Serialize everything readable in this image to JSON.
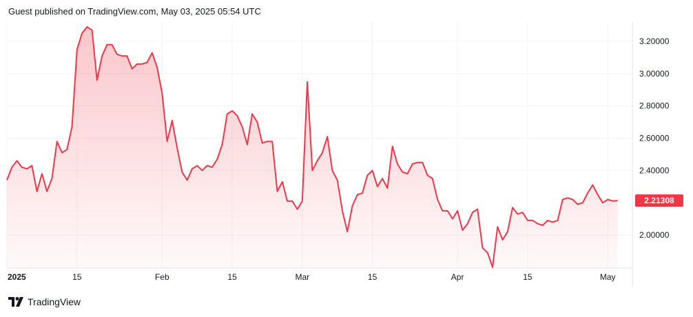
{
  "header": {
    "published_text": "Guest published on TradingView.com, May 03, 2025 05:54 UTC"
  },
  "footer": {
    "brand": "TradingView",
    "logo_icon": "tradingview-logo-icon"
  },
  "colors": {
    "line": "#f23645",
    "fill_top": "#f23645",
    "label_bg": "#f23645",
    "grid": "#f0f3fa",
    "axis_text": "#131722"
  },
  "chart_data": {
    "type": "area",
    "title": "",
    "xlabel": "",
    "ylabel": "",
    "ylim": [
      1.795,
      3.32
    ],
    "xlim": [
      "2025-01-01",
      "2025-05-04"
    ],
    "grid": true,
    "y_ticks": [
      "3.20000",
      "3.00000",
      "2.80000",
      "2.60000",
      "2.40000",
      "2.00000"
    ],
    "x_ticks": [
      {
        "date": "2025-01-01",
        "label": "2025",
        "bold": true
      },
      {
        "date": "2025-01-15",
        "label": "15",
        "bold": false
      },
      {
        "date": "2025-02-01",
        "label": "Feb",
        "bold": false
      },
      {
        "date": "2025-02-15",
        "label": "15",
        "bold": false
      },
      {
        "date": "2025-03-01",
        "label": "Mar",
        "bold": false
      },
      {
        "date": "2025-03-15",
        "label": "15",
        "bold": false
      },
      {
        "date": "2025-04-01",
        "label": "Apr",
        "bold": false
      },
      {
        "date": "2025-04-15",
        "label": "15",
        "bold": false
      },
      {
        "date": "2025-05-01",
        "label": "May",
        "bold": false
      }
    ],
    "last_value_label": "2.21308",
    "series": [
      {
        "x": [
          "2025-01-01",
          "2025-01-02",
          "2025-01-03",
          "2025-01-04",
          "2025-01-05",
          "2025-01-06",
          "2025-01-07",
          "2025-01-08",
          "2025-01-09",
          "2025-01-10",
          "2025-01-11",
          "2025-01-12",
          "2025-01-13",
          "2025-01-14",
          "2025-01-15",
          "2025-01-16",
          "2025-01-17",
          "2025-01-18",
          "2025-01-19",
          "2025-01-20",
          "2025-01-21",
          "2025-01-22",
          "2025-01-23",
          "2025-01-24",
          "2025-01-25",
          "2025-01-26",
          "2025-01-27",
          "2025-01-28",
          "2025-01-29",
          "2025-01-30",
          "2025-01-31",
          "2025-02-01",
          "2025-02-02",
          "2025-02-03",
          "2025-02-04",
          "2025-02-05",
          "2025-02-06",
          "2025-02-07",
          "2025-02-08",
          "2025-02-09",
          "2025-02-10",
          "2025-02-11",
          "2025-02-12",
          "2025-02-13",
          "2025-02-14",
          "2025-02-15",
          "2025-02-16",
          "2025-02-17",
          "2025-02-18",
          "2025-02-19",
          "2025-02-20",
          "2025-02-21",
          "2025-02-22",
          "2025-02-23",
          "2025-02-24",
          "2025-02-25",
          "2025-02-26",
          "2025-02-27",
          "2025-02-28",
          "2025-03-01",
          "2025-03-02",
          "2025-03-03",
          "2025-03-04",
          "2025-03-05",
          "2025-03-06",
          "2025-03-07",
          "2025-03-08",
          "2025-03-09",
          "2025-03-10",
          "2025-03-11",
          "2025-03-12",
          "2025-03-13",
          "2025-03-14",
          "2025-03-15",
          "2025-03-16",
          "2025-03-17",
          "2025-03-18",
          "2025-03-19",
          "2025-03-20",
          "2025-03-21",
          "2025-03-22",
          "2025-03-23",
          "2025-03-24",
          "2025-03-25",
          "2025-03-26",
          "2025-03-27",
          "2025-03-28",
          "2025-03-29",
          "2025-03-30",
          "2025-03-31",
          "2025-04-01",
          "2025-04-02",
          "2025-04-03",
          "2025-04-04",
          "2025-04-05",
          "2025-04-06",
          "2025-04-07",
          "2025-04-08",
          "2025-04-09",
          "2025-04-10",
          "2025-04-11",
          "2025-04-12",
          "2025-04-13",
          "2025-04-14",
          "2025-04-15",
          "2025-04-16",
          "2025-04-17",
          "2025-04-18",
          "2025-04-19",
          "2025-04-20",
          "2025-04-21",
          "2025-04-22",
          "2025-04-23",
          "2025-04-24",
          "2025-04-25",
          "2025-04-26",
          "2025-04-27",
          "2025-04-28",
          "2025-04-29",
          "2025-04-30",
          "2025-05-01",
          "2025-05-02",
          "2025-05-03"
        ],
        "values": [
          2.34,
          2.42,
          2.46,
          2.42,
          2.41,
          2.43,
          2.27,
          2.38,
          2.27,
          2.35,
          2.58,
          2.51,
          2.53,
          2.67,
          3.15,
          3.25,
          3.29,
          3.27,
          2.96,
          3.11,
          3.18,
          3.18,
          3.12,
          3.11,
          3.11,
          3.03,
          3.06,
          3.06,
          3.07,
          3.13,
          3.04,
          2.88,
          2.58,
          2.71,
          2.54,
          2.39,
          2.34,
          2.41,
          2.43,
          2.4,
          2.43,
          2.42,
          2.47,
          2.56,
          2.75,
          2.77,
          2.74,
          2.67,
          2.56,
          2.75,
          2.7,
          2.57,
          2.58,
          2.58,
          2.27,
          2.33,
          2.21,
          2.21,
          2.16,
          2.21,
          2.95,
          2.4,
          2.46,
          2.51,
          2.61,
          2.4,
          2.34,
          2.15,
          2.02,
          2.18,
          2.25,
          2.26,
          2.37,
          2.4,
          2.3,
          2.35,
          2.29,
          2.55,
          2.44,
          2.39,
          2.38,
          2.44,
          2.45,
          2.45,
          2.37,
          2.35,
          2.22,
          2.15,
          2.15,
          2.1,
          2.15,
          2.03,
          2.07,
          2.14,
          2.16,
          1.92,
          1.89,
          1.8,
          2.05,
          1.97,
          2.02,
          2.17,
          2.13,
          2.14,
          2.09,
          2.09,
          2.07,
          2.06,
          2.09,
          2.08,
          2.09,
          2.22,
          2.23,
          2.22,
          2.19,
          2.2,
          2.26,
          2.31,
          2.25,
          2.2,
          2.22,
          2.21,
          2.21308
        ]
      }
    ]
  }
}
